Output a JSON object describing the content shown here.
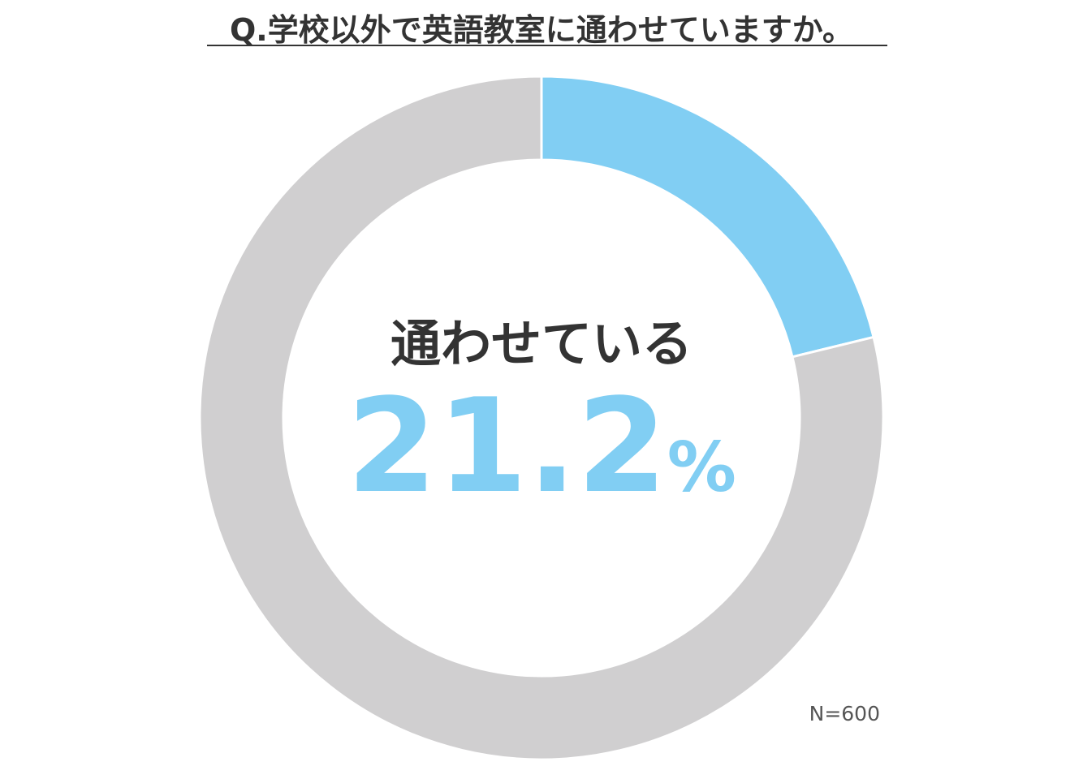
{
  "chart_data": {
    "type": "pie",
    "donut": true,
    "title": "Q.学校以外で英語教室に通わせていますか。",
    "categories": [
      "通わせている",
      null
    ],
    "values": [
      21.2,
      78.8
    ],
    "value_labels": [
      "21.2%",
      null
    ],
    "colors": [
      "#81cef3",
      "#d0cfd0"
    ],
    "note": "N=600"
  }
}
